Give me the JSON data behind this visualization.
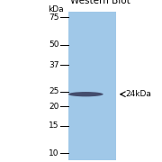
{
  "title": "Western Blot",
  "kda_label": "kDa",
  "marker_labels": [
    "75",
    "50",
    "37",
    "25",
    "20",
    "15",
    "10"
  ],
  "marker_positions": [
    75,
    50,
    37,
    25,
    20,
    15,
    10
  ],
  "band_kda": 24,
  "band_label": "← 24kDa",
  "gel_color": "#a0c8e8",
  "band_color": "#3a4060",
  "background_color": "#ffffff",
  "title_fontsize": 7.5,
  "label_fontsize": 6.5
}
